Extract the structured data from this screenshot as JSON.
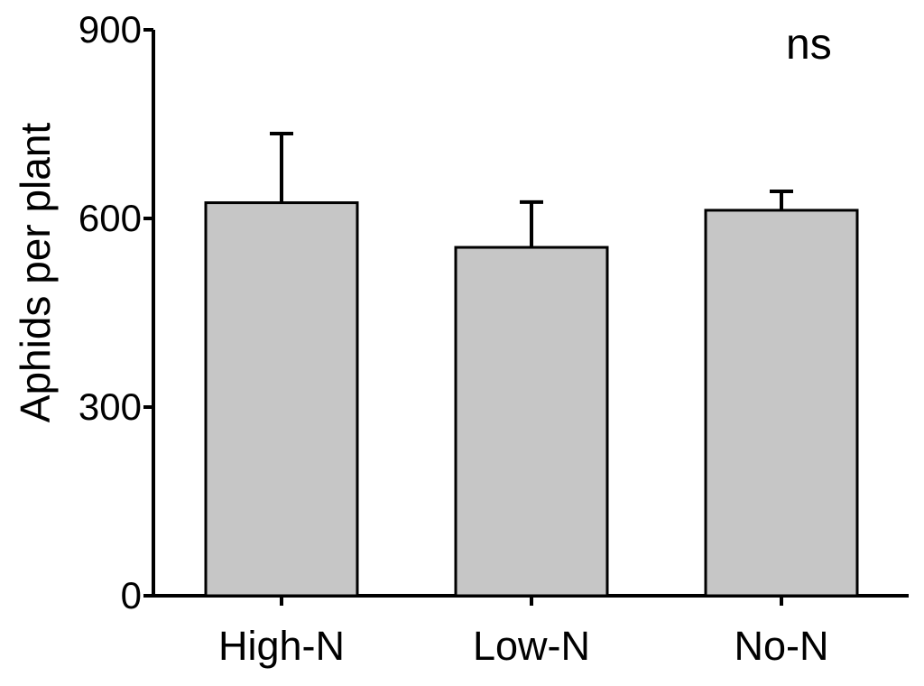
{
  "chart_data": {
    "type": "bar",
    "title": "",
    "xlabel": "",
    "ylabel": "Aphids per plant",
    "categories": [
      "High-N",
      "Low-N",
      "No-N"
    ],
    "values": [
      625,
      554,
      613
    ],
    "errors_upper": [
      110,
      72,
      30
    ],
    "ylim": [
      0,
      900
    ],
    "yticks": [
      0,
      300,
      600,
      900
    ],
    "annotation": "ns",
    "grid": false,
    "legend": "none",
    "colors": {
      "bar_fill": "#c6c6c6",
      "bar_stroke": "#000000",
      "axis": "#000000",
      "error_bar": "#000000",
      "background": "#ffffff",
      "text": "#000000"
    }
  }
}
